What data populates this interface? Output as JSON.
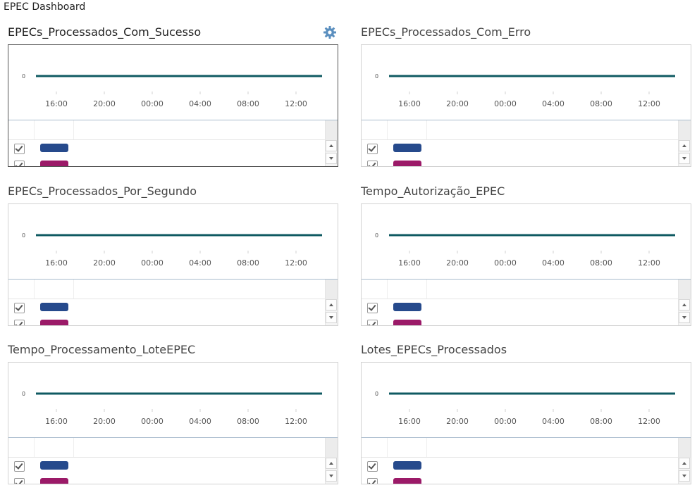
{
  "app": {
    "title": "EPEC Dashboard"
  },
  "colors": {
    "series_line": "#0f5a62",
    "legend_series_1": "#264a8c",
    "legend_series_2": "#9b1a68",
    "gear": "#5b8fbf"
  },
  "panels": [
    {
      "title": "EPECs_Processados_Com_Sucesso",
      "active": true,
      "show_settings": true,
      "settings_icon": "gear-icon",
      "chart_data": {
        "type": "line",
        "x_ticks": [
          "16:00",
          "20:00",
          "00:00",
          "04:00",
          "08:00",
          "12:00"
        ],
        "y_ticks": [
          "0"
        ],
        "series": [
          {
            "values": [
              0,
              0,
              0,
              0,
              0,
              0
            ]
          }
        ]
      },
      "legend": [
        {
          "checked": true,
          "color": "#264a8c"
        },
        {
          "checked": true,
          "color": "#9b1a68"
        }
      ]
    },
    {
      "title": "EPECs_Processados_Com_Erro",
      "active": false,
      "show_settings": false,
      "chart_data": {
        "type": "line",
        "x_ticks": [
          "16:00",
          "20:00",
          "00:00",
          "04:00",
          "08:00",
          "12:00"
        ],
        "y_ticks": [
          "0"
        ],
        "series": [
          {
            "values": [
              0,
              0,
              0,
              0,
              0,
              0
            ]
          }
        ]
      },
      "legend": [
        {
          "checked": true,
          "color": "#264a8c"
        },
        {
          "checked": true,
          "color": "#9b1a68"
        }
      ]
    },
    {
      "title": "EPECs_Processados_Por_Segundo",
      "active": false,
      "show_settings": false,
      "chart_data": {
        "type": "line",
        "x_ticks": [
          "16:00",
          "20:00",
          "00:00",
          "04:00",
          "08:00",
          "12:00"
        ],
        "y_ticks": [
          "0"
        ],
        "series": [
          {
            "values": [
              0,
              0,
              0,
              0,
              0,
              0
            ]
          }
        ]
      },
      "legend": [
        {
          "checked": true,
          "color": "#264a8c"
        },
        {
          "checked": true,
          "color": "#9b1a68"
        }
      ]
    },
    {
      "title": "Tempo_Autorização_EPEC",
      "active": false,
      "show_settings": false,
      "chart_data": {
        "type": "line",
        "x_ticks": [
          "16:00",
          "20:00",
          "00:00",
          "04:00",
          "08:00",
          "12:00"
        ],
        "y_ticks": [
          "0"
        ],
        "series": [
          {
            "values": [
              0,
              0,
              0,
              0,
              0,
              0
            ]
          }
        ]
      },
      "legend": [
        {
          "checked": true,
          "color": "#264a8c"
        },
        {
          "checked": true,
          "color": "#9b1a68"
        }
      ]
    },
    {
      "title": "Tempo_Processamento_LoteEPEC",
      "active": false,
      "show_settings": false,
      "chart_data": {
        "type": "line",
        "x_ticks": [
          "16:00",
          "20:00",
          "00:00",
          "04:00",
          "08:00",
          "12:00"
        ],
        "y_ticks": [
          "0"
        ],
        "series": [
          {
            "values": [
              0,
              0,
              0,
              0,
              0,
              0
            ]
          }
        ]
      },
      "legend": [
        {
          "checked": true,
          "color": "#264a8c"
        },
        {
          "checked": true,
          "color": "#9b1a68"
        }
      ]
    },
    {
      "title": "Lotes_EPECs_Processados",
      "active": false,
      "show_settings": false,
      "chart_data": {
        "type": "line",
        "x_ticks": [
          "16:00",
          "20:00",
          "00:00",
          "04:00",
          "08:00",
          "12:00"
        ],
        "y_ticks": [
          "0"
        ],
        "series": [
          {
            "values": [
              0,
              0,
              0,
              0,
              0,
              0
            ]
          }
        ]
      },
      "legend": [
        {
          "checked": true,
          "color": "#264a8c"
        },
        {
          "checked": true,
          "color": "#9b1a68"
        }
      ]
    }
  ]
}
